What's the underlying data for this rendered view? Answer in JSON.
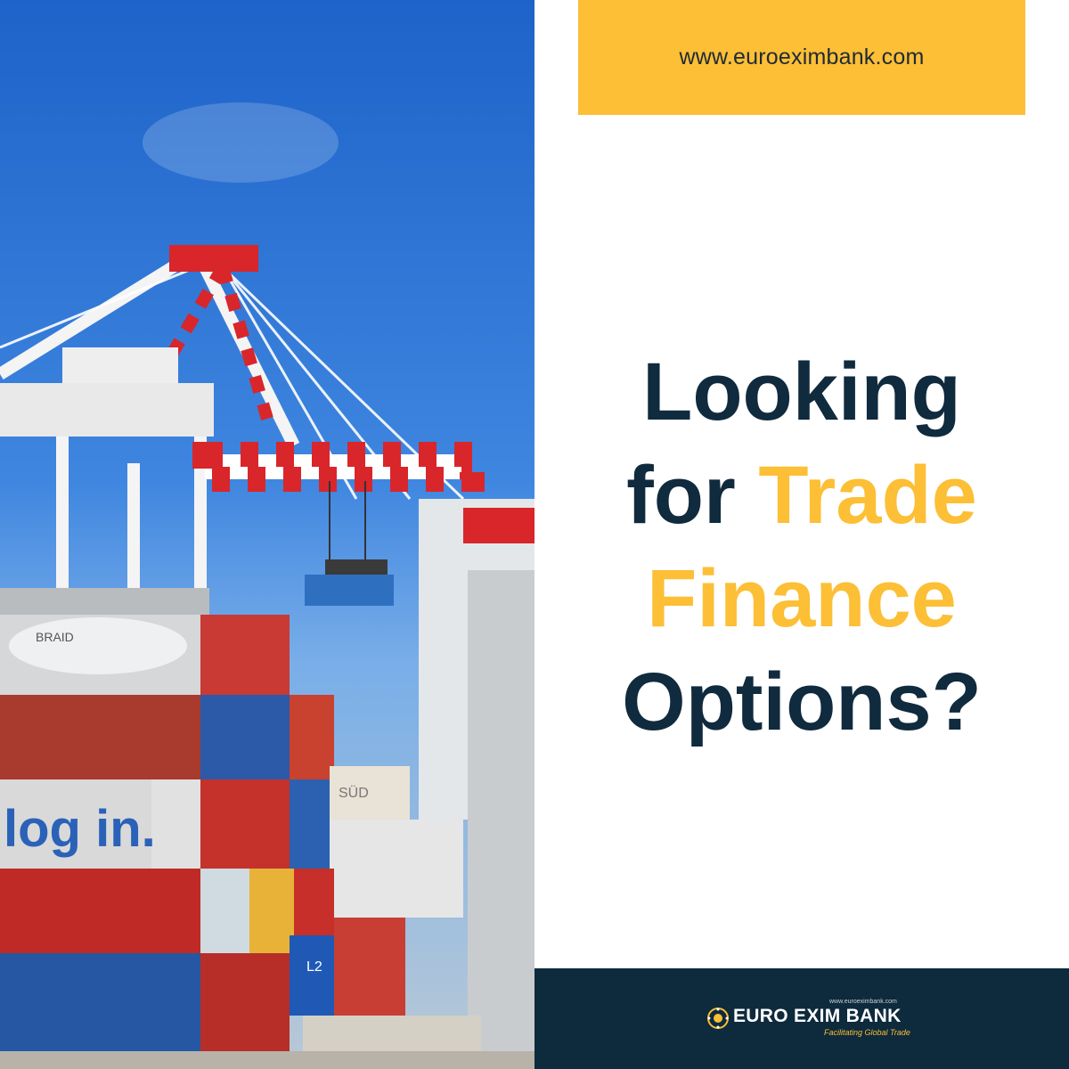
{
  "website": {
    "url": "www.euroeximbank.com"
  },
  "headline": {
    "line1": "Looking",
    "line2_prefix": "for",
    "line2_accent": "Trade",
    "line3_accent": "Finance",
    "line4": "Options?"
  },
  "footer": {
    "logo_url": "www.euroeximbank.com",
    "brand_name": "EURO EXIM BANK",
    "tagline": "Facilitating Global Trade"
  },
  "photo": {
    "container_texts": [
      "BRAID",
      "log in.",
      "SÜD",
      "L2"
    ]
  },
  "colors": {
    "accent_yellow": "#fcbf35",
    "navy": "#102a3e",
    "footer_navy": "#0e2a3d"
  }
}
